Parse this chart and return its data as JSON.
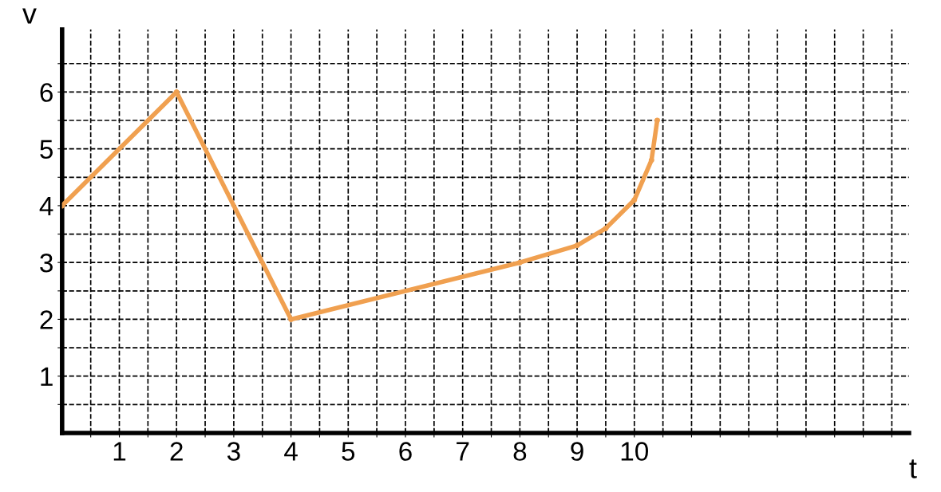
{
  "chart_data": {
    "type": "line",
    "xlabel": "t",
    "ylabel": "v",
    "x": [
      0,
      2,
      4,
      8,
      9,
      9.5,
      10,
      10.3,
      10.4
    ],
    "series": [
      {
        "color": "#f0a050",
        "values": [
          4,
          6,
          2,
          3,
          3.3,
          3.6,
          4.1,
          4.8,
          5.5
        ]
      }
    ],
    "xlim": [
      0,
      14.8
    ],
    "ylim": [
      0,
      7.1
    ],
    "xticks": [
      {
        "value": 0.5,
        "label": null
      },
      1,
      {
        "value": 1.5,
        "label": null
      },
      2,
      {
        "value": 2.5,
        "label": null
      },
      3,
      {
        "value": 3.5,
        "label": null
      },
      4,
      {
        "value": 4.5,
        "label": null
      },
      5,
      {
        "value": 5.5,
        "label": null
      },
      6,
      {
        "value": 6.5,
        "label": null
      },
      7,
      {
        "value": 7.5,
        "label": null
      },
      8,
      {
        "value": 8.5,
        "label": null
      },
      9,
      {
        "value": 9.5,
        "label": null
      },
      10,
      {
        "value": 10.5,
        "label": null
      },
      {
        "value": 11,
        "label": null
      },
      {
        "value": 11.5,
        "label": null
      },
      {
        "value": 12,
        "label": null
      },
      {
        "value": 12.5,
        "label": null
      },
      {
        "value": 13,
        "label": null
      },
      {
        "value": 13.5,
        "label": null
      },
      {
        "value": 14,
        "label": null
      },
      {
        "value": 14.5,
        "label": null
      }
    ],
    "yticks": [
      {
        "value": 0.5,
        "label": null
      },
      1,
      {
        "value": 1.5,
        "label": null
      },
      2,
      {
        "value": 2.5,
        "label": null
      },
      3,
      {
        "value": 3.5,
        "label": null
      },
      4,
      {
        "value": 4.5,
        "label": null
      },
      5,
      {
        "value": 5.5,
        "label": null
      },
      6,
      {
        "value": 6.5,
        "label": null
      }
    ],
    "grid": true,
    "marker": "circle",
    "line_style": "solid"
  }
}
